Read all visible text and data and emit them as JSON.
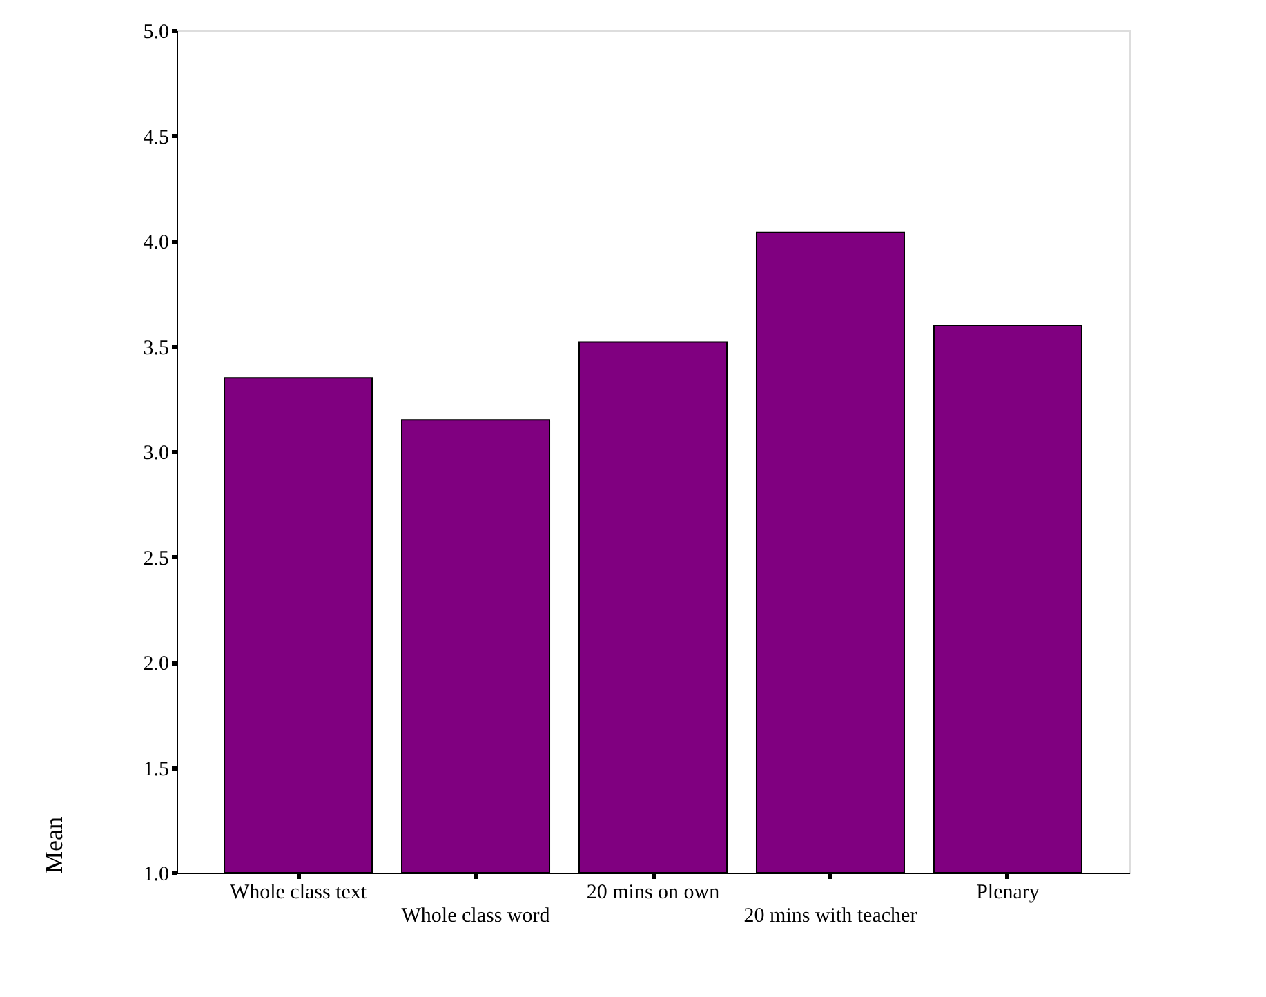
{
  "chart_data": {
    "type": "bar",
    "ylabel": "Mean",
    "categories": [
      "Whole class text",
      "Whole class word",
      "20 mins on own",
      "20 mins with teacher",
      "Plenary"
    ],
    "values": [
      3.35,
      3.15,
      3.52,
      4.04,
      3.6
    ],
    "color": "#800080",
    "ylim": [
      1.0,
      5.0
    ],
    "yticks": [
      {
        "value": 1.0,
        "label": "1.0"
      },
      {
        "value": 1.5,
        "label": "1.5"
      },
      {
        "value": 2.0,
        "label": "2.0"
      },
      {
        "value": 2.5,
        "label": "2.5"
      },
      {
        "value": 3.0,
        "label": "3.0"
      },
      {
        "value": 3.5,
        "label": "3.5"
      },
      {
        "value": 4.0,
        "label": "4.0"
      },
      {
        "value": 4.5,
        "label": "4.5"
      },
      {
        "value": 5.0,
        "label": "5.0"
      }
    ],
    "grid": false
  }
}
